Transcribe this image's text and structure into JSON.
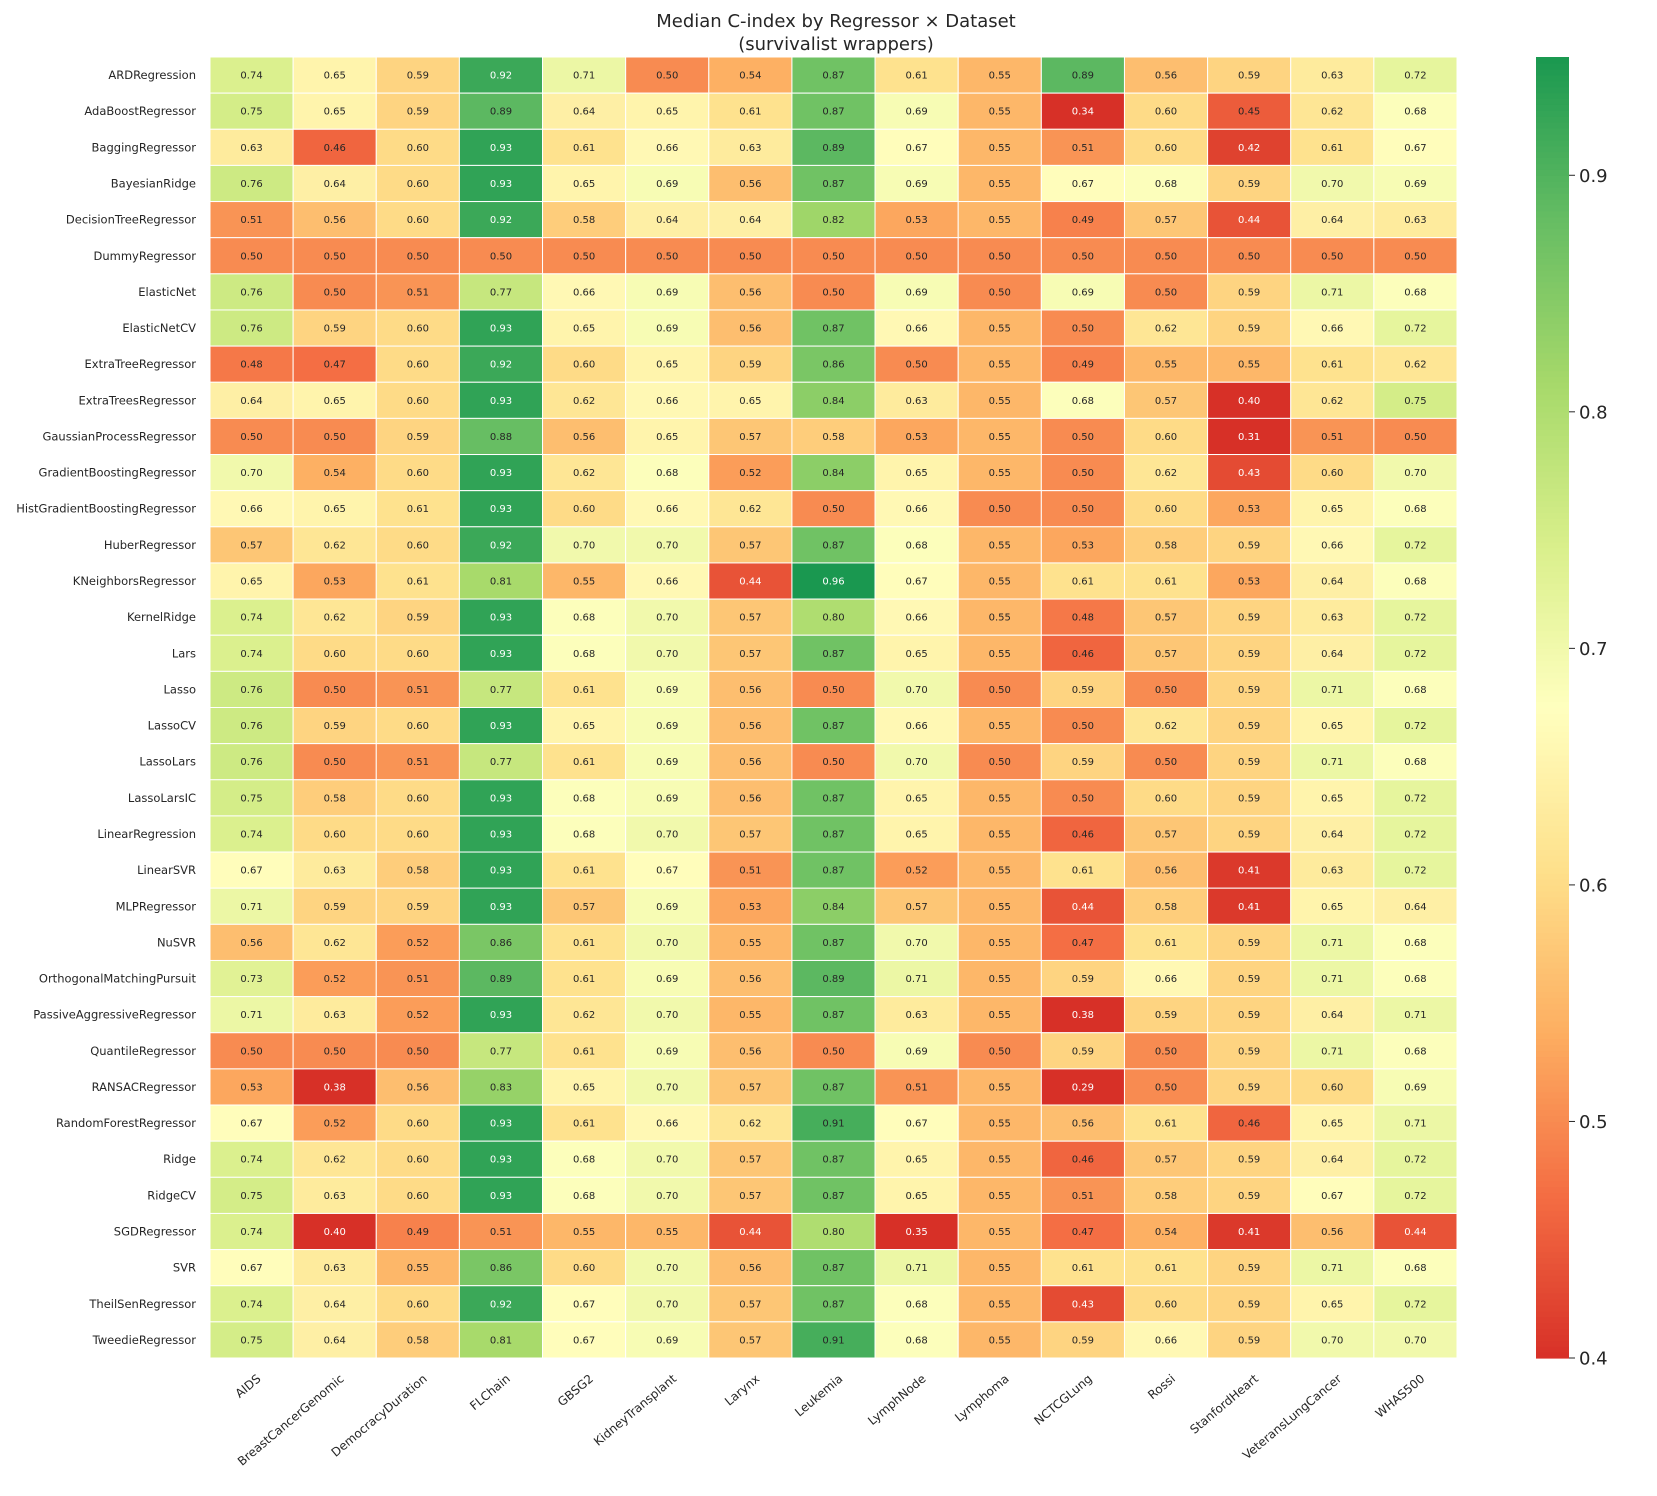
{
  "chart_data": {
    "type": "heatmap",
    "title": "Median C-index by Regressor × Dataset",
    "subtitle": "(survivalist wrappers)",
    "xlabel": "",
    "ylabel": "",
    "columns": [
      "AIDS",
      "BreastCancerGenomic",
      "DemocracyDuration",
      "FLChain",
      "GBSG2",
      "KidneyTransplant",
      "Larynx",
      "Leukemia",
      "LymphNode",
      "Lymphoma",
      "NCTCGLung",
      "Rossi",
      "StanfordHeart",
      "VeteransLungCancer",
      "WHAS500"
    ],
    "rows": [
      "ARDRegression",
      "AdaBoostRegressor",
      "BaggingRegressor",
      "BayesianRidge",
      "DecisionTreeRegressor",
      "DummyRegressor",
      "ElasticNet",
      "ElasticNetCV",
      "ExtraTreeRegressor",
      "ExtraTreesRegressor",
      "GaussianProcessRegressor",
      "GradientBoostingRegressor",
      "HistGradientBoostingRegressor",
      "HuberRegressor",
      "KNeighborsRegressor",
      "KernelRidge",
      "Lars",
      "Lasso",
      "LassoCV",
      "LassoLars",
      "LassoLarsIC",
      "LinearRegression",
      "LinearSVR",
      "MLPRegressor",
      "NuSVR",
      "OrthogonalMatchingPursuit",
      "PassiveAggressiveRegressor",
      "QuantileRegressor",
      "RANSACRegressor",
      "RandomForestRegressor",
      "Ridge",
      "RidgeCV",
      "SGDRegressor",
      "SVR",
      "TheilSenRegressor",
      "TweedieRegressor"
    ],
    "values": [
      [
        0.74,
        0.65,
        0.59,
        0.92,
        0.71,
        0.5,
        0.54,
        0.87,
        0.61,
        0.55,
        0.89,
        0.56,
        0.59,
        0.63,
        0.72
      ],
      [
        0.75,
        0.65,
        0.59,
        0.89,
        0.64,
        0.65,
        0.61,
        0.87,
        0.69,
        0.55,
        0.34,
        0.6,
        0.45,
        0.62,
        0.68
      ],
      [
        0.63,
        0.46,
        0.6,
        0.93,
        0.61,
        0.66,
        0.63,
        0.89,
        0.67,
        0.55,
        0.51,
        0.6,
        0.42,
        0.61,
        0.67
      ],
      [
        0.76,
        0.64,
        0.6,
        0.93,
        0.65,
        0.69,
        0.56,
        0.87,
        0.69,
        0.55,
        0.67,
        0.68,
        0.59,
        0.7,
        0.69
      ],
      [
        0.51,
        0.56,
        0.6,
        0.92,
        0.58,
        0.64,
        0.64,
        0.82,
        0.53,
        0.55,
        0.49,
        0.57,
        0.44,
        0.64,
        0.63
      ],
      [
        0.5,
        0.5,
        0.5,
        0.5,
        0.5,
        0.5,
        0.5,
        0.5,
        0.5,
        0.5,
        0.5,
        0.5,
        0.5,
        0.5,
        0.5
      ],
      [
        0.76,
        0.5,
        0.51,
        0.77,
        0.66,
        0.69,
        0.56,
        0.5,
        0.69,
        0.5,
        0.69,
        0.5,
        0.59,
        0.71,
        0.68
      ],
      [
        0.76,
        0.59,
        0.6,
        0.93,
        0.65,
        0.69,
        0.56,
        0.87,
        0.66,
        0.55,
        0.5,
        0.62,
        0.59,
        0.66,
        0.72
      ],
      [
        0.48,
        0.47,
        0.6,
        0.92,
        0.6,
        0.65,
        0.59,
        0.86,
        0.5,
        0.55,
        0.49,
        0.55,
        0.55,
        0.61,
        0.62
      ],
      [
        0.64,
        0.65,
        0.6,
        0.93,
        0.62,
        0.66,
        0.65,
        0.84,
        0.63,
        0.55,
        0.68,
        0.57,
        0.4,
        0.62,
        0.75
      ],
      [
        0.5,
        0.5,
        0.59,
        0.88,
        0.56,
        0.65,
        0.57,
        0.58,
        0.53,
        0.55,
        0.5,
        0.6,
        0.31,
        0.51,
        0.5
      ],
      [
        0.7,
        0.54,
        0.6,
        0.93,
        0.62,
        0.68,
        0.52,
        0.84,
        0.65,
        0.55,
        0.5,
        0.62,
        0.43,
        0.6,
        0.7
      ],
      [
        0.66,
        0.65,
        0.61,
        0.93,
        0.6,
        0.66,
        0.62,
        0.5,
        0.66,
        0.5,
        0.5,
        0.6,
        0.53,
        0.65,
        0.68
      ],
      [
        0.57,
        0.62,
        0.6,
        0.92,
        0.7,
        0.7,
        0.57,
        0.87,
        0.68,
        0.55,
        0.53,
        0.58,
        0.59,
        0.66,
        0.72
      ],
      [
        0.65,
        0.53,
        0.61,
        0.81,
        0.55,
        0.66,
        0.44,
        0.96,
        0.67,
        0.55,
        0.61,
        0.61,
        0.53,
        0.64,
        0.68
      ],
      [
        0.74,
        0.62,
        0.59,
        0.93,
        0.68,
        0.7,
        0.57,
        0.8,
        0.66,
        0.55,
        0.48,
        0.57,
        0.59,
        0.63,
        0.72
      ],
      [
        0.74,
        0.6,
        0.6,
        0.93,
        0.68,
        0.7,
        0.57,
        0.87,
        0.65,
        0.55,
        0.46,
        0.57,
        0.59,
        0.64,
        0.72
      ],
      [
        0.76,
        0.5,
        0.51,
        0.77,
        0.61,
        0.69,
        0.56,
        0.5,
        0.7,
        0.5,
        0.59,
        0.5,
        0.59,
        0.71,
        0.68
      ],
      [
        0.76,
        0.59,
        0.6,
        0.93,
        0.65,
        0.69,
        0.56,
        0.87,
        0.66,
        0.55,
        0.5,
        0.62,
        0.59,
        0.65,
        0.72
      ],
      [
        0.76,
        0.5,
        0.51,
        0.77,
        0.61,
        0.69,
        0.56,
        0.5,
        0.7,
        0.5,
        0.59,
        0.5,
        0.59,
        0.71,
        0.68
      ],
      [
        0.75,
        0.58,
        0.6,
        0.93,
        0.68,
        0.69,
        0.56,
        0.87,
        0.65,
        0.55,
        0.5,
        0.6,
        0.59,
        0.65,
        0.72
      ],
      [
        0.74,
        0.6,
        0.6,
        0.93,
        0.68,
        0.7,
        0.57,
        0.87,
        0.65,
        0.55,
        0.46,
        0.57,
        0.59,
        0.64,
        0.72
      ],
      [
        0.67,
        0.63,
        0.58,
        0.93,
        0.61,
        0.67,
        0.51,
        0.87,
        0.52,
        0.55,
        0.61,
        0.56,
        0.41,
        0.63,
        0.72
      ],
      [
        0.71,
        0.59,
        0.59,
        0.93,
        0.57,
        0.69,
        0.53,
        0.84,
        0.57,
        0.55,
        0.44,
        0.58,
        0.41,
        0.65,
        0.64
      ],
      [
        0.56,
        0.62,
        0.52,
        0.86,
        0.61,
        0.7,
        0.55,
        0.87,
        0.7,
        0.55,
        0.47,
        0.61,
        0.59,
        0.71,
        0.68
      ],
      [
        0.73,
        0.52,
        0.51,
        0.89,
        0.61,
        0.69,
        0.56,
        0.89,
        0.71,
        0.55,
        0.59,
        0.66,
        0.59,
        0.71,
        0.68
      ],
      [
        0.71,
        0.63,
        0.52,
        0.93,
        0.62,
        0.7,
        0.55,
        0.87,
        0.63,
        0.55,
        0.38,
        0.59,
        0.59,
        0.64,
        0.71
      ],
      [
        0.5,
        0.5,
        0.5,
        0.77,
        0.61,
        0.69,
        0.56,
        0.5,
        0.69,
        0.5,
        0.59,
        0.5,
        0.59,
        0.71,
        0.68
      ],
      [
        0.53,
        0.38,
        0.56,
        0.83,
        0.65,
        0.7,
        0.57,
        0.87,
        0.51,
        0.55,
        0.29,
        0.5,
        0.59,
        0.6,
        0.69
      ],
      [
        0.67,
        0.52,
        0.6,
        0.93,
        0.61,
        0.66,
        0.62,
        0.91,
        0.67,
        0.55,
        0.56,
        0.61,
        0.46,
        0.65,
        0.71
      ],
      [
        0.74,
        0.62,
        0.6,
        0.93,
        0.68,
        0.7,
        0.57,
        0.87,
        0.65,
        0.55,
        0.46,
        0.57,
        0.59,
        0.64,
        0.72
      ],
      [
        0.75,
        0.63,
        0.6,
        0.93,
        0.68,
        0.7,
        0.57,
        0.87,
        0.65,
        0.55,
        0.51,
        0.58,
        0.59,
        0.67,
        0.72
      ],
      [
        0.74,
        0.4,
        0.49,
        0.51,
        0.55,
        0.55,
        0.44,
        0.8,
        0.35,
        0.55,
        0.47,
        0.54,
        0.41,
        0.56,
        0.44
      ],
      [
        0.67,
        0.63,
        0.55,
        0.86,
        0.6,
        0.7,
        0.56,
        0.87,
        0.71,
        0.55,
        0.61,
        0.61,
        0.59,
        0.71,
        0.68
      ],
      [
        0.74,
        0.64,
        0.6,
        0.92,
        0.67,
        0.7,
        0.57,
        0.87,
        0.68,
        0.55,
        0.43,
        0.6,
        0.59,
        0.65,
        0.72
      ],
      [
        0.75,
        0.64,
        0.58,
        0.81,
        0.67,
        0.69,
        0.57,
        0.91,
        0.68,
        0.55,
        0.59,
        0.66,
        0.59,
        0.7,
        0.7
      ]
    ],
    "colormap": "RdYlGn",
    "vmin": 0.4,
    "vmax": 0.95,
    "colorbar_ticks": [
      "0.4",
      "0.5",
      "0.6",
      "0.7",
      "0.8",
      "0.9"
    ],
    "colorbar_tick_values": [
      0.4,
      0.5,
      0.6,
      0.7,
      0.8,
      0.9
    ],
    "annotation_format": "2 decimals",
    "grid": false,
    "cell_border_color": "#ffffff"
  }
}
